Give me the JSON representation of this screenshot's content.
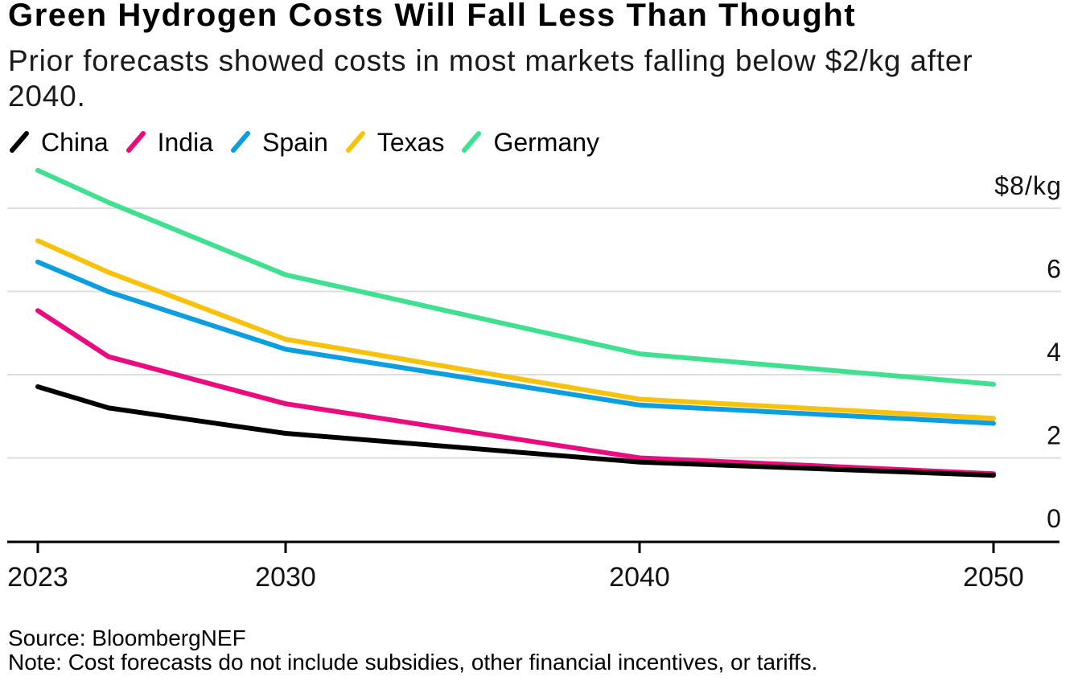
{
  "header": {
    "title": "Green Hydrogen Costs Will Fall Less Than Thought",
    "subtitle": "Prior forecasts showed costs in most markets falling below $2/kg after 2040.",
    "subtitle_lines": [
      "Prior forecasts showed costs in most markets falling below $2/kg after",
      "2040."
    ]
  },
  "footer": {
    "source": "Source: BloombergNEF",
    "note": "Note: Cost forecasts do not include subsidies, other financial incentives, or tariffs."
  },
  "colors": {
    "china": "#000000",
    "india": "#ea0b7e",
    "spain": "#0d9edf",
    "texas": "#f8c20c",
    "germany": "#3fe08f",
    "gridline": "#dddddd",
    "axis": "#000000"
  },
  "chart_data": {
    "type": "line",
    "title": "Green Hydrogen Costs Will Fall Less Than Thought",
    "subtitle": "Prior forecasts showed costs in most markets falling below $2/kg after 2040.",
    "xlabel": "",
    "ylabel": "$/kg",
    "x": [
      2023,
      2025,
      2030,
      2040,
      2050
    ],
    "series": [
      {
        "name": "China",
        "color": "#000000",
        "values": [
          3.71,
          3.2,
          2.59,
          1.9,
          1.58
        ]
      },
      {
        "name": "India",
        "color": "#ea0b7e",
        "values": [
          5.54,
          4.43,
          3.3,
          2.0,
          1.62
        ]
      },
      {
        "name": "Spain",
        "color": "#0d9edf",
        "values": [
          6.71,
          5.99,
          4.61,
          3.27,
          2.83
        ]
      },
      {
        "name": "Texas",
        "color": "#f8c20c",
        "values": [
          7.22,
          6.46,
          4.85,
          3.41,
          2.95
        ]
      },
      {
        "name": "Germany",
        "color": "#3fe08f",
        "values": [
          8.91,
          8.14,
          6.4,
          4.5,
          3.77
        ]
      }
    ],
    "draw_order": [
      "Germany",
      "Texas",
      "Spain",
      "India",
      "China"
    ],
    "y_ticks": [
      {
        "label": "$8/kg",
        "value": 8
      },
      {
        "label": "6",
        "value": 6
      },
      {
        "label": "4",
        "value": 4
      },
      {
        "label": "2",
        "value": 2
      },
      {
        "label": "0",
        "value": 0
      }
    ],
    "x_ticks": [
      {
        "label": "2023",
        "value": 2023
      },
      {
        "label": "2030",
        "value": 2030
      },
      {
        "label": "2040",
        "value": 2040
      },
      {
        "label": "2050",
        "value": 2050
      }
    ],
    "ylim": [
      0,
      9.2
    ],
    "xlim": [
      2023,
      2050
    ],
    "grid": "horizontal",
    "legend_position": "top"
  }
}
